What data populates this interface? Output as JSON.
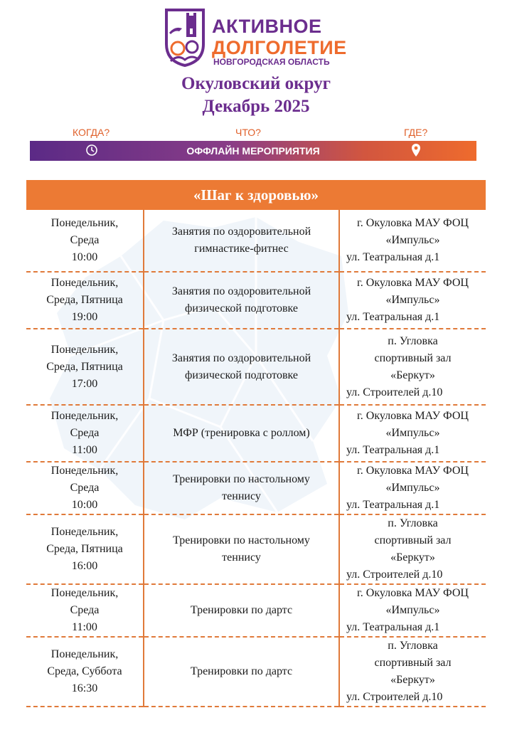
{
  "logo": {
    "line1": "АКТИВНОЕ",
    "line2": "ДОЛГОЛЕТИЕ",
    "line3": "НОВГОРОДСКАЯ ОБЛАСТЬ"
  },
  "title": {
    "district": "Окуловский округ",
    "month": "Декабрь 2025"
  },
  "questions": {
    "when": "КОГДА?",
    "what": "ЧТО?",
    "where": "ГДЕ?"
  },
  "band": {
    "label": "ОФФЛАЙН МЕРОПРИЯТИЯ",
    "left_icon": "clock-icon",
    "right_icon": "location-pin-icon"
  },
  "section": {
    "title": "«Шаг к здоровью»"
  },
  "colors": {
    "purple": "#6b2d8e",
    "orange": "#ec7a34"
  },
  "rows": [
    {
      "when": [
        "Понедельник,",
        "Среда",
        "10:00"
      ],
      "what": [
        "Занятия по оздоровительной",
        "гимнастике-фитнес"
      ],
      "where": [
        "г. Окуловка МАУ ФОЦ",
        "«Импульс»",
        "ул. Театральная д.1"
      ]
    },
    {
      "when": [
        "Понедельник,",
        "Среда, Пятница",
        "19:00"
      ],
      "what": [
        "Занятия по оздоровительной",
        "физической подготовке"
      ],
      "where": [
        "г. Окуловка МАУ ФОЦ",
        "«Импульс»",
        "ул. Театральная д.1"
      ]
    },
    {
      "when": [
        "Понедельник,",
        "Среда, Пятница",
        "17:00"
      ],
      "what": [
        "Занятия по оздоровительной",
        "физической подготовке"
      ],
      "where": [
        "п. Угловка",
        "спортивный зал",
        "«Беркут»",
        "ул. Строителей д.10"
      ]
    },
    {
      "when": [
        "Понедельник,",
        "Среда",
        "11:00"
      ],
      "what": [
        "МФР (тренировка с роллом)"
      ],
      "where": [
        "г. Окуловка МАУ ФОЦ",
        "«Импульс»",
        "ул. Театральная д.1"
      ]
    },
    {
      "when": [
        "Понедельник,",
        "Среда",
        "10:00"
      ],
      "what": [
        "Тренировки по настольному",
        "теннису"
      ],
      "where": [
        "г. Окуловка МАУ ФОЦ",
        "«Импульс»",
        "ул. Театральная д.1"
      ]
    },
    {
      "when": [
        "Понедельник,",
        "Среда, Пятница",
        "16:00"
      ],
      "what": [
        "Тренировки по настольному",
        "теннису"
      ],
      "where": [
        "п. Угловка",
        "спортивный зал",
        "«Беркут»",
        "ул. Строителей д.10"
      ]
    },
    {
      "when": [
        "Понедельник,",
        "Среда",
        "11:00"
      ],
      "what": [
        "Тренировки по дартс"
      ],
      "where": [
        "г. Окуловка МАУ ФОЦ",
        "«Импульс»",
        "ул. Театральная д.1"
      ]
    },
    {
      "when": [
        "Понедельник,",
        "Среда, Суббота",
        "16:30"
      ],
      "what": [
        "Тренировки по дартс"
      ],
      "where": [
        "п. Угловка",
        "спортивный зал",
        "«Беркут»",
        "ул. Строителей д.10"
      ]
    }
  ]
}
